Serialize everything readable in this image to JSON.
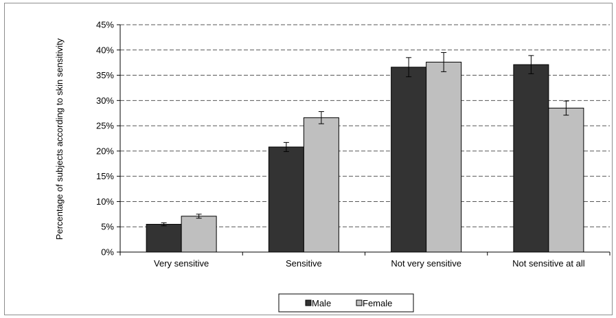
{
  "chart_data": {
    "type": "bar",
    "title": "",
    "xlabel": "",
    "ylabel": "Percentage of subjects according to skin sensitivity",
    "categories": [
      "Very sensitive",
      "Sensitive",
      "Not very sensitive",
      "Not sensitive at all"
    ],
    "series": [
      {
        "name": "Male",
        "color": "#333333",
        "values": [
          5.5,
          20.8,
          36.6,
          37.1
        ],
        "error": [
          0.3,
          0.9,
          1.9,
          1.8
        ]
      },
      {
        "name": "Female",
        "color": "#bfbfbf",
        "values": [
          7.1,
          26.6,
          37.6,
          28.5
        ],
        "error": [
          0.4,
          1.2,
          1.9,
          1.4
        ]
      }
    ],
    "ylim": [
      0,
      45
    ],
    "yticks": [
      0,
      5,
      10,
      15,
      20,
      25,
      30,
      35,
      40,
      45
    ],
    "ytick_labels": [
      "0%",
      "5%",
      "10%",
      "15%",
      "20%",
      "25%",
      "30%",
      "35%",
      "40%",
      "45%"
    ],
    "grid": "dashed horizontal",
    "legend": "bottom-center"
  }
}
